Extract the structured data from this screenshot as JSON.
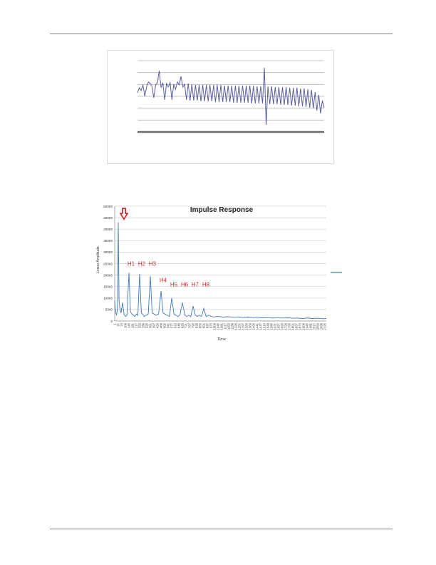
{
  "chart_data": [
    {
      "type": "line",
      "title": "",
      "xlabel": "",
      "ylabel": "",
      "grid": true,
      "legend": "none",
      "color": "#5b5fa0",
      "series": [
        {
          "name": "",
          "values": [
            0.55,
            0.62,
            0.58,
            0.66,
            0.5,
            0.63,
            0.7,
            0.68,
            0.64,
            0.48,
            0.66,
            0.69,
            0.86,
            0.62,
            0.69,
            0.45,
            0.68,
            0.63,
            0.69,
            0.45,
            0.67,
            0.6,
            0.7,
            0.66,
            0.78,
            0.63,
            0.67,
            0.45,
            0.68,
            0.44,
            0.67,
            0.44,
            0.66,
            0.44,
            0.66,
            0.43,
            0.66,
            0.43,
            0.66,
            0.43,
            0.66,
            0.43,
            0.66,
            0.42,
            0.66,
            0.42,
            0.66,
            0.42,
            0.65,
            0.42,
            0.65,
            0.42,
            0.65,
            0.41,
            0.65,
            0.41,
            0.65,
            0.41,
            0.65,
            0.41,
            0.65,
            0.41,
            0.65,
            0.4,
            0.65,
            0.4,
            0.64,
            0.4,
            0.64,
            0.4,
            0.9,
            0.1,
            0.64,
            0.39,
            0.64,
            0.39,
            0.63,
            0.39,
            0.63,
            0.38,
            0.63,
            0.38,
            0.63,
            0.38,
            0.62,
            0.37,
            0.62,
            0.37,
            0.62,
            0.36,
            0.61,
            0.36,
            0.61,
            0.35,
            0.6,
            0.34,
            0.59,
            0.33,
            0.56,
            0.3,
            0.52,
            0.26,
            0.44,
            0.34
          ]
        }
      ]
    },
    {
      "type": "line",
      "title": "Impulse Response",
      "xlabel": "Time",
      "ylabel": "Linear Amplitude",
      "ylim": [
        0,
        50000
      ],
      "yticks": [
        0,
        5000,
        10000,
        15000,
        20000,
        25000,
        30000,
        35000,
        40000,
        45000,
        50000
      ],
      "xticks": [
        "1",
        "37",
        "73",
        "109",
        "145",
        "181",
        "217",
        "253",
        "289",
        "325",
        "361",
        "397",
        "433",
        "469",
        "505",
        "541",
        "577",
        "613",
        "649",
        "685",
        "721",
        "757",
        "793",
        "829",
        "865",
        "901",
        "937",
        "973",
        "1009",
        "1045",
        "1081",
        "1117",
        "1153",
        "1189",
        "1225",
        "1261",
        "1297",
        "1333",
        "1369",
        "1405",
        "1441",
        "1477",
        "1513",
        "1549",
        "1585",
        "1621",
        "1657",
        "1693",
        "1729",
        "1765",
        "1801",
        "1837",
        "1873",
        "1909",
        "1945",
        "1981",
        "2017",
        "2053",
        "2089",
        "2125"
      ],
      "grid": true,
      "legend": "right",
      "color": "#3f78b5",
      "annotations": [
        {
          "label": "H1",
          "x": 145
        },
        {
          "label": "H2",
          "x": 253
        },
        {
          "label": "H3",
          "x": 361
        },
        {
          "label": "H4",
          "x": 469
        },
        {
          "label": "H5",
          "x": 577
        },
        {
          "label": "H6",
          "x": 685
        },
        {
          "label": "H7",
          "x": 793
        },
        {
          "label": "H8",
          "x": 901
        }
      ],
      "arrow": {
        "x": 37,
        "color": "#d02020"
      },
      "series": [
        {
          "name": "",
          "values": [
            [
              1,
              9000
            ],
            [
              10,
              4000
            ],
            [
              20,
              2500
            ],
            [
              30,
              6000
            ],
            [
              37,
              43000
            ],
            [
              45,
              9000
            ],
            [
              55,
              5000
            ],
            [
              65,
              3500
            ],
            [
              80,
              8000
            ],
            [
              95,
              3000
            ],
            [
              110,
              2000
            ],
            [
              125,
              2500
            ],
            [
              145,
              21000
            ],
            [
              160,
              4000
            ],
            [
              175,
              3000
            ],
            [
              190,
              2500
            ],
            [
              205,
              2000
            ],
            [
              220,
              3000
            ],
            [
              235,
              2500
            ],
            [
              253,
              20500
            ],
            [
              270,
              3500
            ],
            [
              285,
              3000
            ],
            [
              300,
              2000
            ],
            [
              320,
              2500
            ],
            [
              340,
              3000
            ],
            [
              361,
              19500
            ],
            [
              380,
              3500
            ],
            [
              400,
              3000
            ],
            [
              420,
              2500
            ],
            [
              445,
              3000
            ],
            [
              469,
              13000
            ],
            [
              490,
              3500
            ],
            [
              510,
              3000
            ],
            [
              530,
              2500
            ],
            [
              555,
              2000
            ],
            [
              577,
              10000
            ],
            [
              600,
              3000
            ],
            [
              620,
              2500
            ],
            [
              640,
              2000
            ],
            [
              660,
              2500
            ],
            [
              685,
              8000
            ],
            [
              710,
              2500
            ],
            [
              730,
              2000
            ],
            [
              750,
              2500
            ],
            [
              770,
              2000
            ],
            [
              793,
              6500
            ],
            [
              815,
              2500
            ],
            [
              835,
              2000
            ],
            [
              855,
              2500
            ],
            [
              880,
              2000
            ],
            [
              901,
              5500
            ],
            [
              925,
              2000
            ],
            [
              950,
              2500
            ],
            [
              975,
              2000
            ],
            [
              1000,
              1800
            ],
            [
              1050,
              2000
            ],
            [
              1100,
              1700
            ],
            [
              1150,
              1900
            ],
            [
              1200,
              1600
            ],
            [
              1250,
              1800
            ],
            [
              1300,
              1500
            ],
            [
              1350,
              1700
            ],
            [
              1400,
              1500
            ],
            [
              1450,
              1600
            ],
            [
              1500,
              1400
            ],
            [
              1550,
              1500
            ],
            [
              1600,
              1300
            ],
            [
              1650,
              1500
            ],
            [
              1700,
              1300
            ],
            [
              1750,
              1400
            ],
            [
              1800,
              1200
            ],
            [
              1850,
              1300
            ],
            [
              1900,
              1100
            ],
            [
              1950,
              1300
            ],
            [
              2000,
              1100
            ],
            [
              2050,
              1200
            ],
            [
              2100,
              1000
            ],
            [
              2140,
              1100
            ]
          ]
        }
      ]
    }
  ]
}
